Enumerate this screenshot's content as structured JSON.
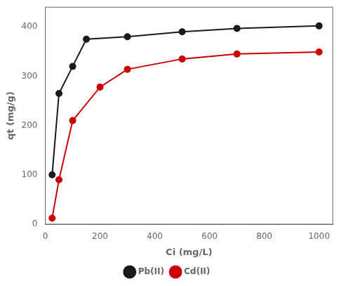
{
  "chart_data": {
    "type": "line",
    "x_label": "Ci (mg/L)",
    "y_label": "qt (mg/g)",
    "series": [
      {
        "name": "Pb(II)",
        "color": "#1a1a1a",
        "marker": "circle",
        "x": [
          25,
          50,
          100,
          150,
          300,
          500,
          700,
          1000
        ],
        "values": [
          100,
          265,
          320,
          375,
          380,
          390,
          397,
          402
        ]
      },
      {
        "name": "Cd(II)",
        "color": "#cc0000",
        "marker": "circle",
        "x": [
          25,
          50,
          100,
          200,
          300,
          500,
          700,
          1000
        ],
        "values": [
          12,
          90,
          210,
          278,
          314,
          335,
          345,
          349
        ]
      }
    ],
    "xlim": [
      0,
      1050
    ],
    "ylim": [
      0,
      440
    ],
    "xticks": [
      0,
      200,
      400,
      600,
      800,
      1000
    ],
    "yticks": [
      0,
      100,
      200,
      300,
      400
    ],
    "grid": false,
    "legend": "lower center"
  }
}
